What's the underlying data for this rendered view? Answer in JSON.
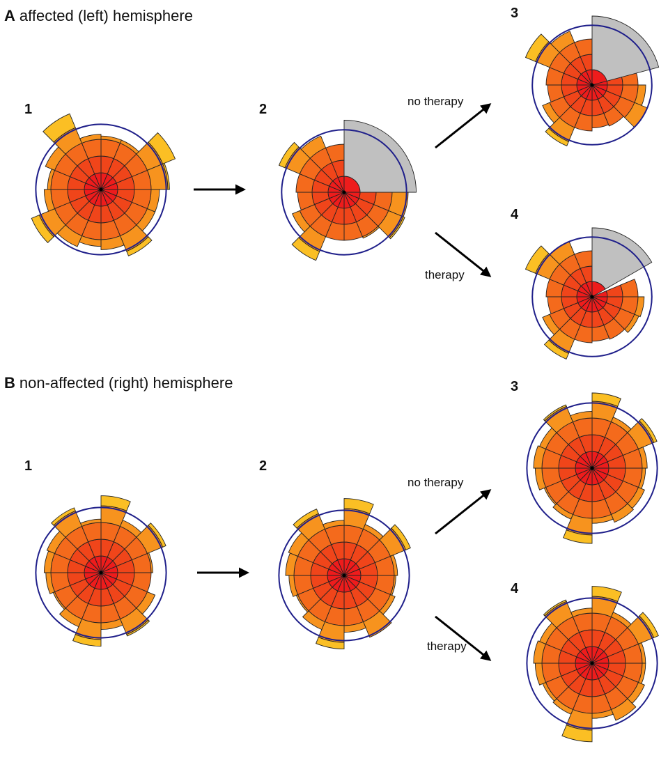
{
  "panels": [
    {
      "letter": "A",
      "title": "affected (left) hemisphere",
      "stage_labels": [
        "1",
        "2",
        "3",
        "4"
      ],
      "arrow_labels": [
        "no therapy",
        "therapy"
      ],
      "roses": [
        {
          "stage": "1",
          "lesion": null,
          "spokes": [
            3.2,
            3.2,
            4.8,
            4.1,
            3.5,
            3.5,
            4.3,
            3.6,
            3.4,
            3.7,
            4.5,
            3.4,
            3.2,
            3.6,
            4.9,
            3.3
          ]
        },
        {
          "stage": "2",
          "lesion": [
            0,
            90
          ],
          "spokes": [
            3.0,
            3.0,
            3.0,
            3.0,
            4.0,
            4.1,
            3.1,
            3.0,
            3.0,
            4.6,
            3.5,
            2.9,
            3.0,
            4.4,
            3.8,
            3.0
          ]
        },
        {
          "stage": "3",
          "lesion": [
            0,
            75
          ],
          "spokes": [
            3.0,
            3.0,
            3.0,
            3.0,
            3.5,
            3.9,
            2.9,
            2.8,
            3.0,
            4.3,
            3.5,
            2.9,
            3.0,
            4.7,
            3.8,
            3.0
          ]
        },
        {
          "stage": "4",
          "lesion": [
            0,
            60
          ],
          "spokes": [
            3.1,
            3.0,
            3.0,
            3.0,
            3.4,
            3.3,
            3.0,
            2.9,
            3.0,
            4.4,
            3.5,
            2.9,
            3.0,
            4.7,
            3.9,
            3.0
          ]
        }
      ]
    },
    {
      "letter": "B",
      "title": "non-affected (right) hemisphere",
      "stage_labels": [
        "1",
        "2",
        "3",
        "4"
      ],
      "arrow_labels": [
        "no therapy",
        "therapy"
      ],
      "roses": [
        {
          "stage": "1",
          "lesion": null,
          "spokes": [
            4.6,
            3.4,
            4.2,
            3.1,
            3.0,
            3.5,
            4.1,
            3.4,
            4.4,
            3.5,
            3.1,
            3.3,
            3.4,
            3.5,
            4.2,
            3.2
          ]
        },
        {
          "stage": "2",
          "lesion": null,
          "spokes": [
            4.6,
            3.3,
            4.3,
            3.2,
            3.1,
            3.3,
            4.0,
            3.4,
            4.4,
            3.5,
            3.1,
            3.3,
            3.5,
            3.6,
            4.3,
            3.3
          ]
        },
        {
          "stage": "3",
          "lesion": null,
          "spokes": [
            4.5,
            3.3,
            4.2,
            3.3,
            3.2,
            3.4,
            3.5,
            3.3,
            4.5,
            3.3,
            3.1,
            3.4,
            3.5,
            3.4,
            4.1,
            3.4
          ]
        },
        {
          "stage": "4",
          "lesion": null,
          "spokes": [
            4.6,
            3.3,
            4.3,
            3.2,
            3.2,
            3.4,
            3.7,
            3.3,
            4.7,
            3.3,
            3.2,
            3.4,
            3.5,
            3.4,
            4.1,
            3.3
          ]
        }
      ]
    }
  ],
  "colors": {
    "ring1": "#ee1c1c",
    "ring2": "#f0451a",
    "ring3": "#f46a1c",
    "ring4": "#f7931e",
    "ring5": "#fbbf24",
    "ring6": "#f8f02a",
    "lesion": "#c0c0c0",
    "reference_circle": "#1f1f8a",
    "outline": "#222222",
    "arrow": "#000000"
  }
}
